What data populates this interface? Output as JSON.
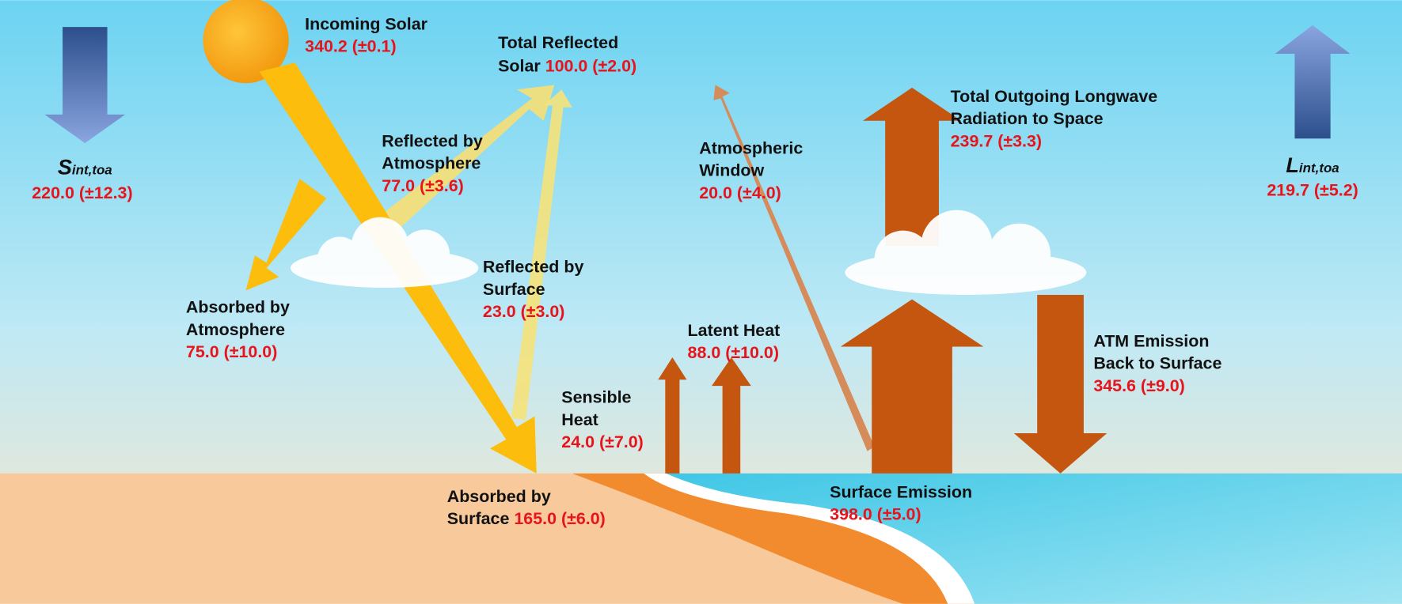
{
  "s_int_toa": {
    "symbol": "S",
    "subscript": "int,toa",
    "value": "220.0 (±12.3)"
  },
  "l_int_toa": {
    "symbol": "L",
    "subscript": "int,toa",
    "value": "219.7 (±5.2)"
  },
  "flows": [
    {
      "label": [
        "Incoming Solar"
      ],
      "value": "340.2 (±0.1)"
    },
    {
      "label": [
        "Total Reflected",
        "Solar"
      ],
      "value": "100.0 (±2.0)"
    },
    {
      "label": [
        "Reflected by",
        "Atmosphere"
      ],
      "value": "77.0 (±3.6)"
    },
    {
      "label": [
        "Reflected by",
        "Surface"
      ],
      "value": "23.0 (±3.0)"
    },
    {
      "label": [
        "Absorbed by",
        "Atmosphere"
      ],
      "value": "75.0 (±10.0)"
    },
    {
      "label": [
        "Absorbed by",
        "Surface"
      ],
      "value": "165.0 (±6.0)"
    },
    {
      "label": [
        "Sensible",
        "Heat"
      ],
      "value": "24.0 (±7.0)"
    },
    {
      "label": [
        "Latent Heat"
      ],
      "value": "88.0 (±10.0)"
    },
    {
      "label": [
        "Atmospheric",
        "Window"
      ],
      "value": "20.0 (±4.0)"
    },
    {
      "label": [
        "Total Outgoing Longwave",
        "Radiation to Space"
      ],
      "value": "239.7 (±3.3)"
    },
    {
      "label": [
        "ATM Emission",
        "Back to Surface"
      ],
      "value": "345.6 (±9.0)"
    },
    {
      "label": [
        "Surface Emission"
      ],
      "value": "398.0 (±5.0)"
    }
  ]
}
